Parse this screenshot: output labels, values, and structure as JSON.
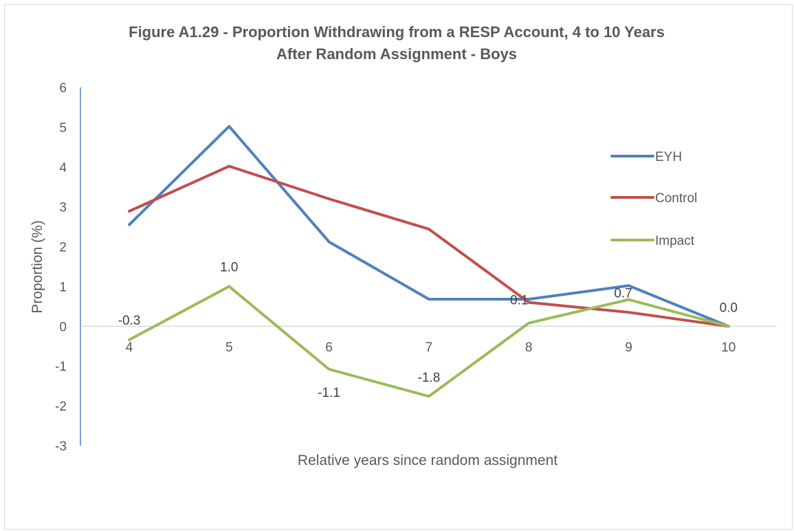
{
  "chart_data": {
    "type": "line",
    "title_line1": "Figure A1.29 - Proportion Withdrawing from a RESP Account, 4 to 10 Years",
    "title_line2": "After Random Assignment - Boys",
    "xlabel": "Relative years since random assignment",
    "ylabel": "Proportion (%)",
    "categories": [
      "4",
      "5",
      "6",
      "7",
      "8",
      "9",
      "10"
    ],
    "ylim": [
      -3,
      6
    ],
    "yticks": [
      "-3",
      "-2",
      "-1",
      "0",
      "1",
      "2",
      "3",
      "4",
      "5",
      "6"
    ],
    "grid": false,
    "legend_position": "right",
    "series": [
      {
        "name": "EYH",
        "color": "#4f81bd",
        "values": [
          2.55,
          5.02,
          2.12,
          0.68,
          0.68,
          1.02,
          0.0
        ]
      },
      {
        "name": "Control",
        "color": "#c0504d",
        "values": [
          2.89,
          4.02,
          3.2,
          2.44,
          0.6,
          0.35,
          0.0
        ]
      },
      {
        "name": "Impact",
        "color": "#9bbb59",
        "values": [
          -0.34,
          1.0,
          -1.08,
          -1.76,
          0.08,
          0.67,
          0.0
        ],
        "data_labels": [
          "-0.3",
          "1.0",
          "-1.1",
          "-1.8",
          "0.1",
          "0.7",
          "0.0"
        ]
      }
    ]
  }
}
